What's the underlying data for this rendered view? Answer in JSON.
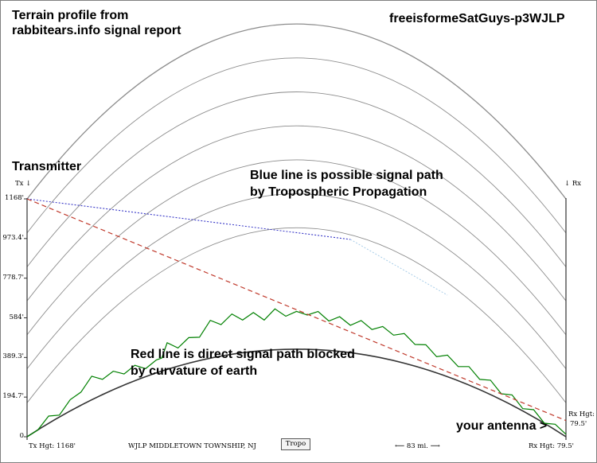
{
  "header": {
    "title_line1": "Terrain profile from",
    "title_line2": "rabbitears.info signal report",
    "watermark": "freeisformeSatGuys-p3WJLP"
  },
  "annotations": {
    "transmitter": "Transmitter",
    "blue_line_1": "Blue line is possible signal path",
    "blue_line_2": "by Tropospheric Propagation",
    "red_line_1": "Red line is direct signal path blocked",
    "red_line_2": "by curvature of earth",
    "your_antenna": "your antenna >"
  },
  "profile": {
    "tx_marker": "Tx ↓",
    "rx_marker": "↓ Rx",
    "rx_hgt_label": "Rx Hgt:",
    "rx_hgt_value": "79.5'",
    "footer_tx": "Tx Hgt: 1168'",
    "footer_station": "WJLP MIDDLETOWN TOWNSHIP, NJ",
    "footer_button": "Tropo",
    "footer_distance": "⟵ 83 mi. ⟶",
    "footer_rx": "Rx Hgt: 79.5'"
  },
  "colors": {
    "terrain": "#008000",
    "direct_path": "#c0392b",
    "tropo_path": "#3b3bc8",
    "tropo_path_light": "#a8cde8",
    "earth_curve": "#333333",
    "grid_arcs": "#8c8c8c"
  },
  "chart_data": {
    "type": "line",
    "title": "",
    "xlabel": "",
    "ylabel": "",
    "ytick_labels": [
      "0",
      "194.7'",
      "389.3'",
      "584'",
      "778.7'",
      "973.4'",
      "1168'"
    ],
    "ylim": [
      0,
      1168
    ],
    "xlim_mi": [
      0,
      83
    ],
    "tx_height_ft": 1168,
    "rx_height_ft": 79.5,
    "series": [
      {
        "key": "terrain",
        "x_frac": [
          0,
          0.02,
          0.04,
          0.06,
          0.08,
          0.1,
          0.12,
          0.14,
          0.16,
          0.18,
          0.2,
          0.22,
          0.24,
          0.25,
          0.26,
          0.28,
          0.3,
          0.32,
          0.34,
          0.36,
          0.38,
          0.4,
          0.42,
          0.44,
          0.46,
          0.48,
          0.5,
          0.52,
          0.54,
          0.56,
          0.58,
          0.6,
          0.62,
          0.64,
          0.66,
          0.68,
          0.7,
          0.72,
          0.74,
          0.76,
          0.78,
          0.8,
          0.82,
          0.84,
          0.86,
          0.88,
          0.9,
          0.92,
          0.94,
          0.96,
          0.98,
          1
        ],
        "y_ft": [
          0,
          15,
          20,
          25,
          40,
          80,
          100,
          90,
          75,
          70,
          60,
          55,
          48,
          80,
          115,
          105,
          110,
          130,
          170,
          170,
          182,
          176,
          175,
          165,
          185,
          178,
          170,
          184,
          172,
          160,
          155,
          150,
          150,
          146,
          140,
          140,
          130,
          122,
          105,
          95,
          90,
          85,
          75,
          66,
          55,
          45,
          35,
          27,
          20,
          16,
          12,
          12
        ]
      }
    ]
  }
}
